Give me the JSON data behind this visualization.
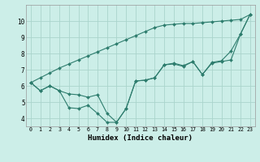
{
  "xlabel": "Humidex (Indice chaleur)",
  "background_color": "#cceee8",
  "grid_color": "#aad4cc",
  "line_color": "#2e7d6e",
  "xlim": [
    -0.5,
    23.5
  ],
  "ylim": [
    3.5,
    11.0
  ],
  "xticks": [
    0,
    1,
    2,
    3,
    4,
    5,
    6,
    7,
    8,
    9,
    10,
    11,
    12,
    13,
    14,
    15,
    16,
    17,
    18,
    19,
    20,
    21,
    22,
    23
  ],
  "yticks": [
    4,
    5,
    6,
    7,
    8,
    9,
    10
  ],
  "line1_x": [
    0,
    1,
    2,
    3,
    4,
    5,
    6,
    7,
    8,
    9,
    10,
    11,
    12,
    13,
    14,
    15,
    16,
    17,
    18,
    19,
    20,
    21,
    22,
    23
  ],
  "line1_y": [
    6.2,
    6.5,
    6.8,
    7.1,
    7.35,
    7.6,
    7.85,
    8.1,
    8.35,
    8.6,
    8.85,
    9.1,
    9.35,
    9.6,
    9.75,
    9.8,
    9.85,
    9.85,
    9.9,
    9.95,
    10.0,
    10.05,
    10.1,
    10.4
  ],
  "line2_x": [
    0,
    1,
    2,
    3,
    4,
    5,
    6,
    7,
    8,
    9,
    10,
    11,
    12,
    13,
    14,
    15,
    16,
    17,
    18,
    19,
    20,
    21,
    22,
    23
  ],
  "line2_y": [
    6.2,
    5.7,
    6.0,
    5.7,
    5.5,
    5.45,
    5.3,
    5.45,
    4.3,
    3.75,
    4.6,
    6.3,
    6.35,
    6.5,
    7.3,
    7.35,
    7.2,
    7.5,
    6.7,
    7.4,
    7.5,
    7.6,
    9.2,
    10.4
  ],
  "line3_x": [
    0,
    1,
    2,
    3,
    4,
    5,
    6,
    7,
    8,
    9,
    10,
    11,
    12,
    13,
    14,
    15,
    16,
    17,
    18,
    19,
    20,
    21,
    22,
    23
  ],
  "line3_y": [
    6.2,
    5.7,
    6.0,
    5.7,
    4.65,
    4.6,
    4.8,
    4.3,
    3.75,
    3.75,
    4.6,
    6.3,
    6.35,
    6.5,
    7.3,
    7.4,
    7.25,
    7.5,
    6.7,
    7.45,
    7.55,
    8.15,
    9.2,
    10.4
  ]
}
